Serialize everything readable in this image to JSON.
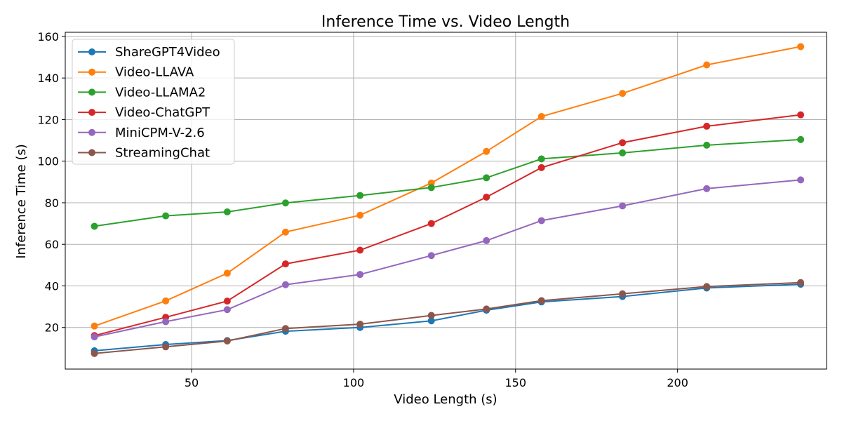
{
  "chart_data": {
    "type": "line",
    "title": "Inference Time vs. Video Length",
    "xlabel": "Video Length (s)",
    "ylabel": "Inference Time (s)",
    "xlim": [
      11,
      246
    ],
    "ylim": [
      0,
      162
    ],
    "xticks": [
      50,
      100,
      150,
      200
    ],
    "yticks": [
      20,
      40,
      60,
      80,
      100,
      120,
      140,
      160
    ],
    "grid": true,
    "legend_position": "top-left",
    "x": [
      20,
      42,
      61,
      79,
      102,
      124,
      141,
      158,
      183,
      209,
      238
    ],
    "series": [
      {
        "name": "ShareGPT4Video",
        "color": "#1f77b4",
        "values": [
          8.8,
          11.8,
          13.7,
          18.2,
          20.0,
          23.2,
          28.3,
          32.3,
          34.9,
          39.0,
          40.8
        ]
      },
      {
        "name": "Video-LLAVA",
        "color": "#ff7f0e",
        "values": [
          20.7,
          32.8,
          46.1,
          65.9,
          74.0,
          89.5,
          104.7,
          121.5,
          132.6,
          146.3,
          155.1
        ]
      },
      {
        "name": "Video-LLAMA2",
        "color": "#2ca02c",
        "values": [
          68.7,
          73.7,
          75.6,
          79.9,
          83.5,
          87.3,
          92.0,
          101.1,
          104.0,
          107.7,
          110.4
        ]
      },
      {
        "name": "Video-ChatGPT",
        "color": "#d62728",
        "values": [
          16.1,
          24.9,
          32.7,
          50.6,
          57.2,
          70.0,
          82.7,
          96.9,
          108.9,
          116.8,
          122.3
        ]
      },
      {
        "name": "MiniCPM-V-2.6",
        "color": "#9467bd",
        "values": [
          15.5,
          22.8,
          28.6,
          40.6,
          45.5,
          54.6,
          61.8,
          71.4,
          78.5,
          86.8,
          91.0
        ]
      },
      {
        "name": "StreamingChat",
        "color": "#8c564b",
        "values": [
          7.5,
          10.7,
          13.5,
          19.5,
          21.6,
          25.8,
          28.9,
          32.9,
          36.2,
          39.7,
          41.6
        ]
      }
    ]
  }
}
